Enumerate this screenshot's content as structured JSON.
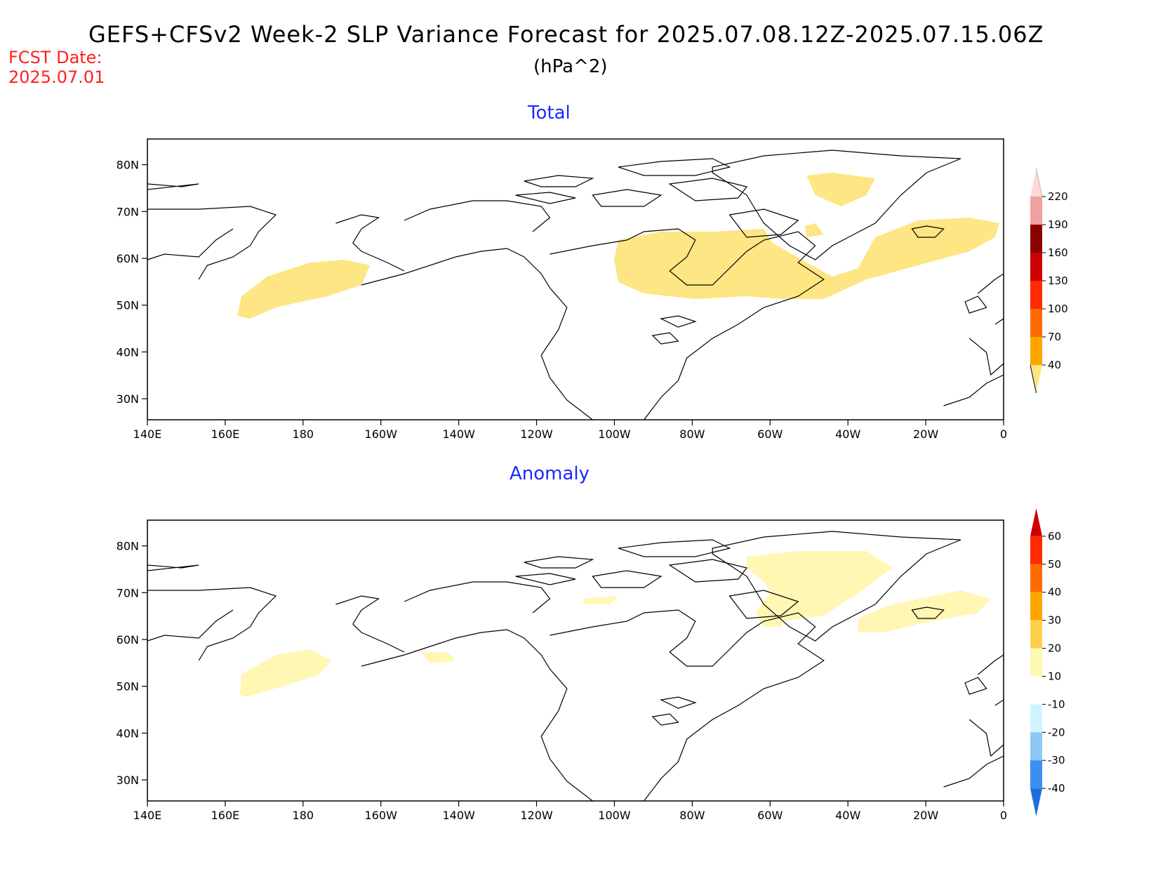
{
  "header": {
    "title": "GEFS+CFSv2 Week-2 SLP Variance Forecast for 2025.07.08.12Z-2025.07.15.06Z",
    "unit": "(hPa^2)",
    "fcst_label": "FCST Date:",
    "fcst_date": "2025.07.01"
  },
  "axes": {
    "lat_labels": [
      "80N",
      "70N",
      "60N",
      "50N",
      "40N",
      "30N"
    ],
    "lon_labels": [
      "140E",
      "160E",
      "180",
      "160W",
      "140W",
      "120W",
      "100W",
      "80W",
      "60W",
      "40W",
      "20W",
      "0"
    ]
  },
  "panels": [
    {
      "title": "Total",
      "colorbar": {
        "levels": [
          "40",
          "70",
          "100",
          "130",
          "160",
          "190",
          "220"
        ],
        "colors": [
          "#ffe680",
          "#ffa500",
          "#ff6a00",
          "#ff2a00",
          "#cc0000",
          "#8b0000",
          "#f0a0a0",
          "#ffd8d8"
        ]
      }
    },
    {
      "title": "Anomaly",
      "colorbar": {
        "levels": [
          "-40",
          "-30",
          "-20",
          "-10",
          "10",
          "20",
          "30",
          "40",
          "50",
          "60"
        ],
        "colors": [
          "#1a6fe0",
          "#3c8ff0",
          "#8cc8f8",
          "#d0f4ff",
          "#ffffff",
          "#fff8b0",
          "#ffd050",
          "#ffa500",
          "#ff6a00",
          "#ff2a00",
          "#cc0000"
        ]
      }
    }
  ],
  "fill_colors": {
    "total_shade": "#fde683",
    "anomaly_shade": "#fff7b3"
  }
}
